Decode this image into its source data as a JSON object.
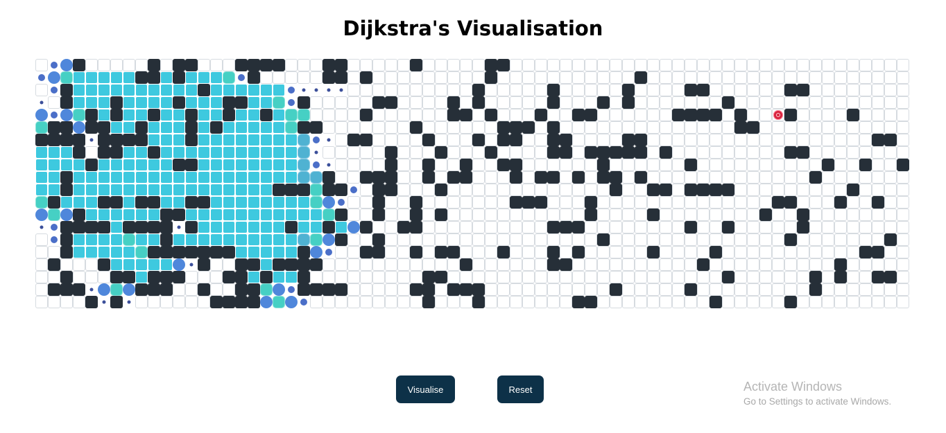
{
  "page": {
    "title": "Dijkstra's Visualisation"
  },
  "controls": {
    "visualise_label": "Visualise",
    "reset_label": "Reset"
  },
  "watermark": {
    "title": "Activate Windows",
    "subtitle": "Go to Settings to activate Windows."
  },
  "grid": {
    "columns": 70,
    "rows": 20,
    "legend": {
      ".": "empty",
      "W": "wall",
      "V": "visited",
      "F": "visited-frontier",
      "G": "visited-frontier-alt",
      "B": "animating-large",
      "m": "animating-medium",
      "s": "animating-small",
      "T": "target"
    },
    "cells": [
      ".mBW.....W.WW...WWWW...WW.....W.....WW.....................................",
      "mBFVVVVVWWVWVVVFmW.....WW.W.........W...........W........................",
      ".mWVVVVVVVVVVWVVVVVVmssss..........W.....W.....W....WW......WW..........",
      "s.WVVVWVVVVWVVVWWVVFmW.....WW....W.W.....W...W.W.......W................",
      "BmBFWVWVVWVVWVVWVVWVFF....W......WW.W...W..WW......WWWW.W..TW....W........",
      "FWWBWWVVWVVVWVWVVVVVFWW.......W......WWW.W..............WW..............",
      "WWWWsWWWWVVVWVVVVVVVVGms.WW....W...W.WW..WW....WW..................WW...",
      "VVVW.WWVVWVVVVVVVVVVVGs.....W...W...W....WW.WWWWW.W.........WW.........",
      "VVVVWVVVVVVWWVVVVVVVVGms....W..W..W..WW......W......W..........W..W..W",
      "VVWVVVVVVVVVVVVVVVVVVGGW..WWW..W.WW...W.WW.W.WW.W.............W.........",
      "VVWVVVVVVVVVVVVVVVVWWWFWWm.WW...W.............W..WW.WWWW.........W........",
      "FWVVVWWVWWVVWWVVVVVVVVFBm..W..W.......WWW...W..............WW...W..W..W....",
      "BFBWVVVVVVWWVVVVVVVVVVVFW..W..W.W...........W....W........W..W...........",
      "smWWWWVWWWWsWVVVVVVVWVVWVBW..WW..........WWW........W..W.....W...........",
      ".mWVVVVFVVWVVVVVVVVVVGFBW..W.................W..............W.......W......",
      "..WVVVVVFWWWWWWWVVVVVWBm..WW..W.WW...W...W.W.....W....W...........WW....W....",
      ".W...WVVVVVBsW..WWVWWWW...........W......WW..........W..........W........",
      "..W...WWVWWW...WWVWVVW.........WW......................W......W.W..WW.....",
      ".WWWsBFBWWW..W..WWFBmWWWW.....WW.WWW..........W.....W.........W.............",
      "....WsWs......WWWWBFBm.........W...W.......WW.........W.....W..............."
    ]
  }
}
